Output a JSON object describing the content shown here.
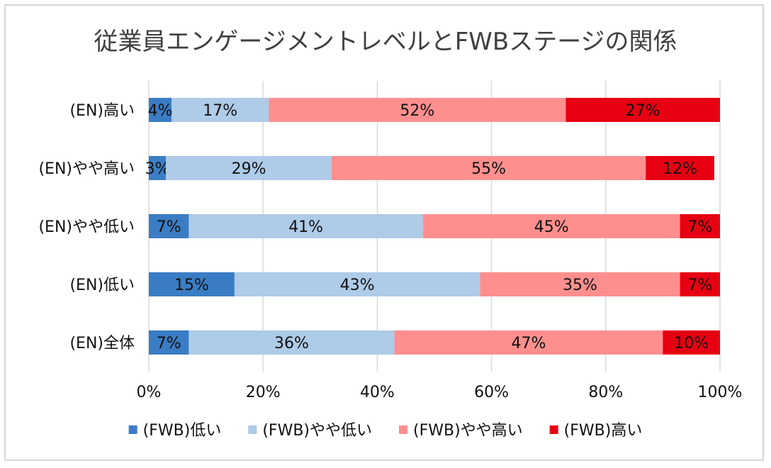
{
  "chart_data": {
    "type": "bar",
    "orientation": "horizontal",
    "stacked": true,
    "title": "従業員エンゲージメントレベルとFWBステージの関係",
    "categories": [
      "(EN)高い",
      "(EN)やや高い",
      "(EN)やや低い",
      "(EN)低い",
      "(EN)全体"
    ],
    "series": [
      {
        "name": "(FWB)低い",
        "color": "#3A7DC4",
        "values": [
          4,
          3,
          7,
          15,
          7
        ],
        "labels": [
          "4%",
          "3%",
          "7%",
          "15%",
          "7%"
        ]
      },
      {
        "name": "(FWB)やや低い",
        "color": "#AECBE8",
        "values": [
          17,
          29,
          41,
          43,
          36
        ],
        "labels": [
          "17%",
          "29%",
          "41%",
          "43%",
          "36%"
        ]
      },
      {
        "name": "(FWB)やや高い",
        "color": "#FF8F8F",
        "values": [
          52,
          55,
          45,
          35,
          47
        ],
        "labels": [
          "52%",
          "55%",
          "45%",
          "35%",
          "47%"
        ]
      },
      {
        "name": "(FWB)高い",
        "color": "#E60012",
        "values": [
          27,
          12,
          7,
          7,
          10
        ],
        "labels": [
          "27%",
          "12%",
          "7%",
          "7%",
          "10%"
        ]
      }
    ],
    "xlim": [
      0,
      100
    ],
    "xticks": [
      "0%",
      "20%",
      "40%",
      "60%",
      "80%",
      "100%"
    ],
    "grid": true,
    "legend_position": "bottom"
  }
}
